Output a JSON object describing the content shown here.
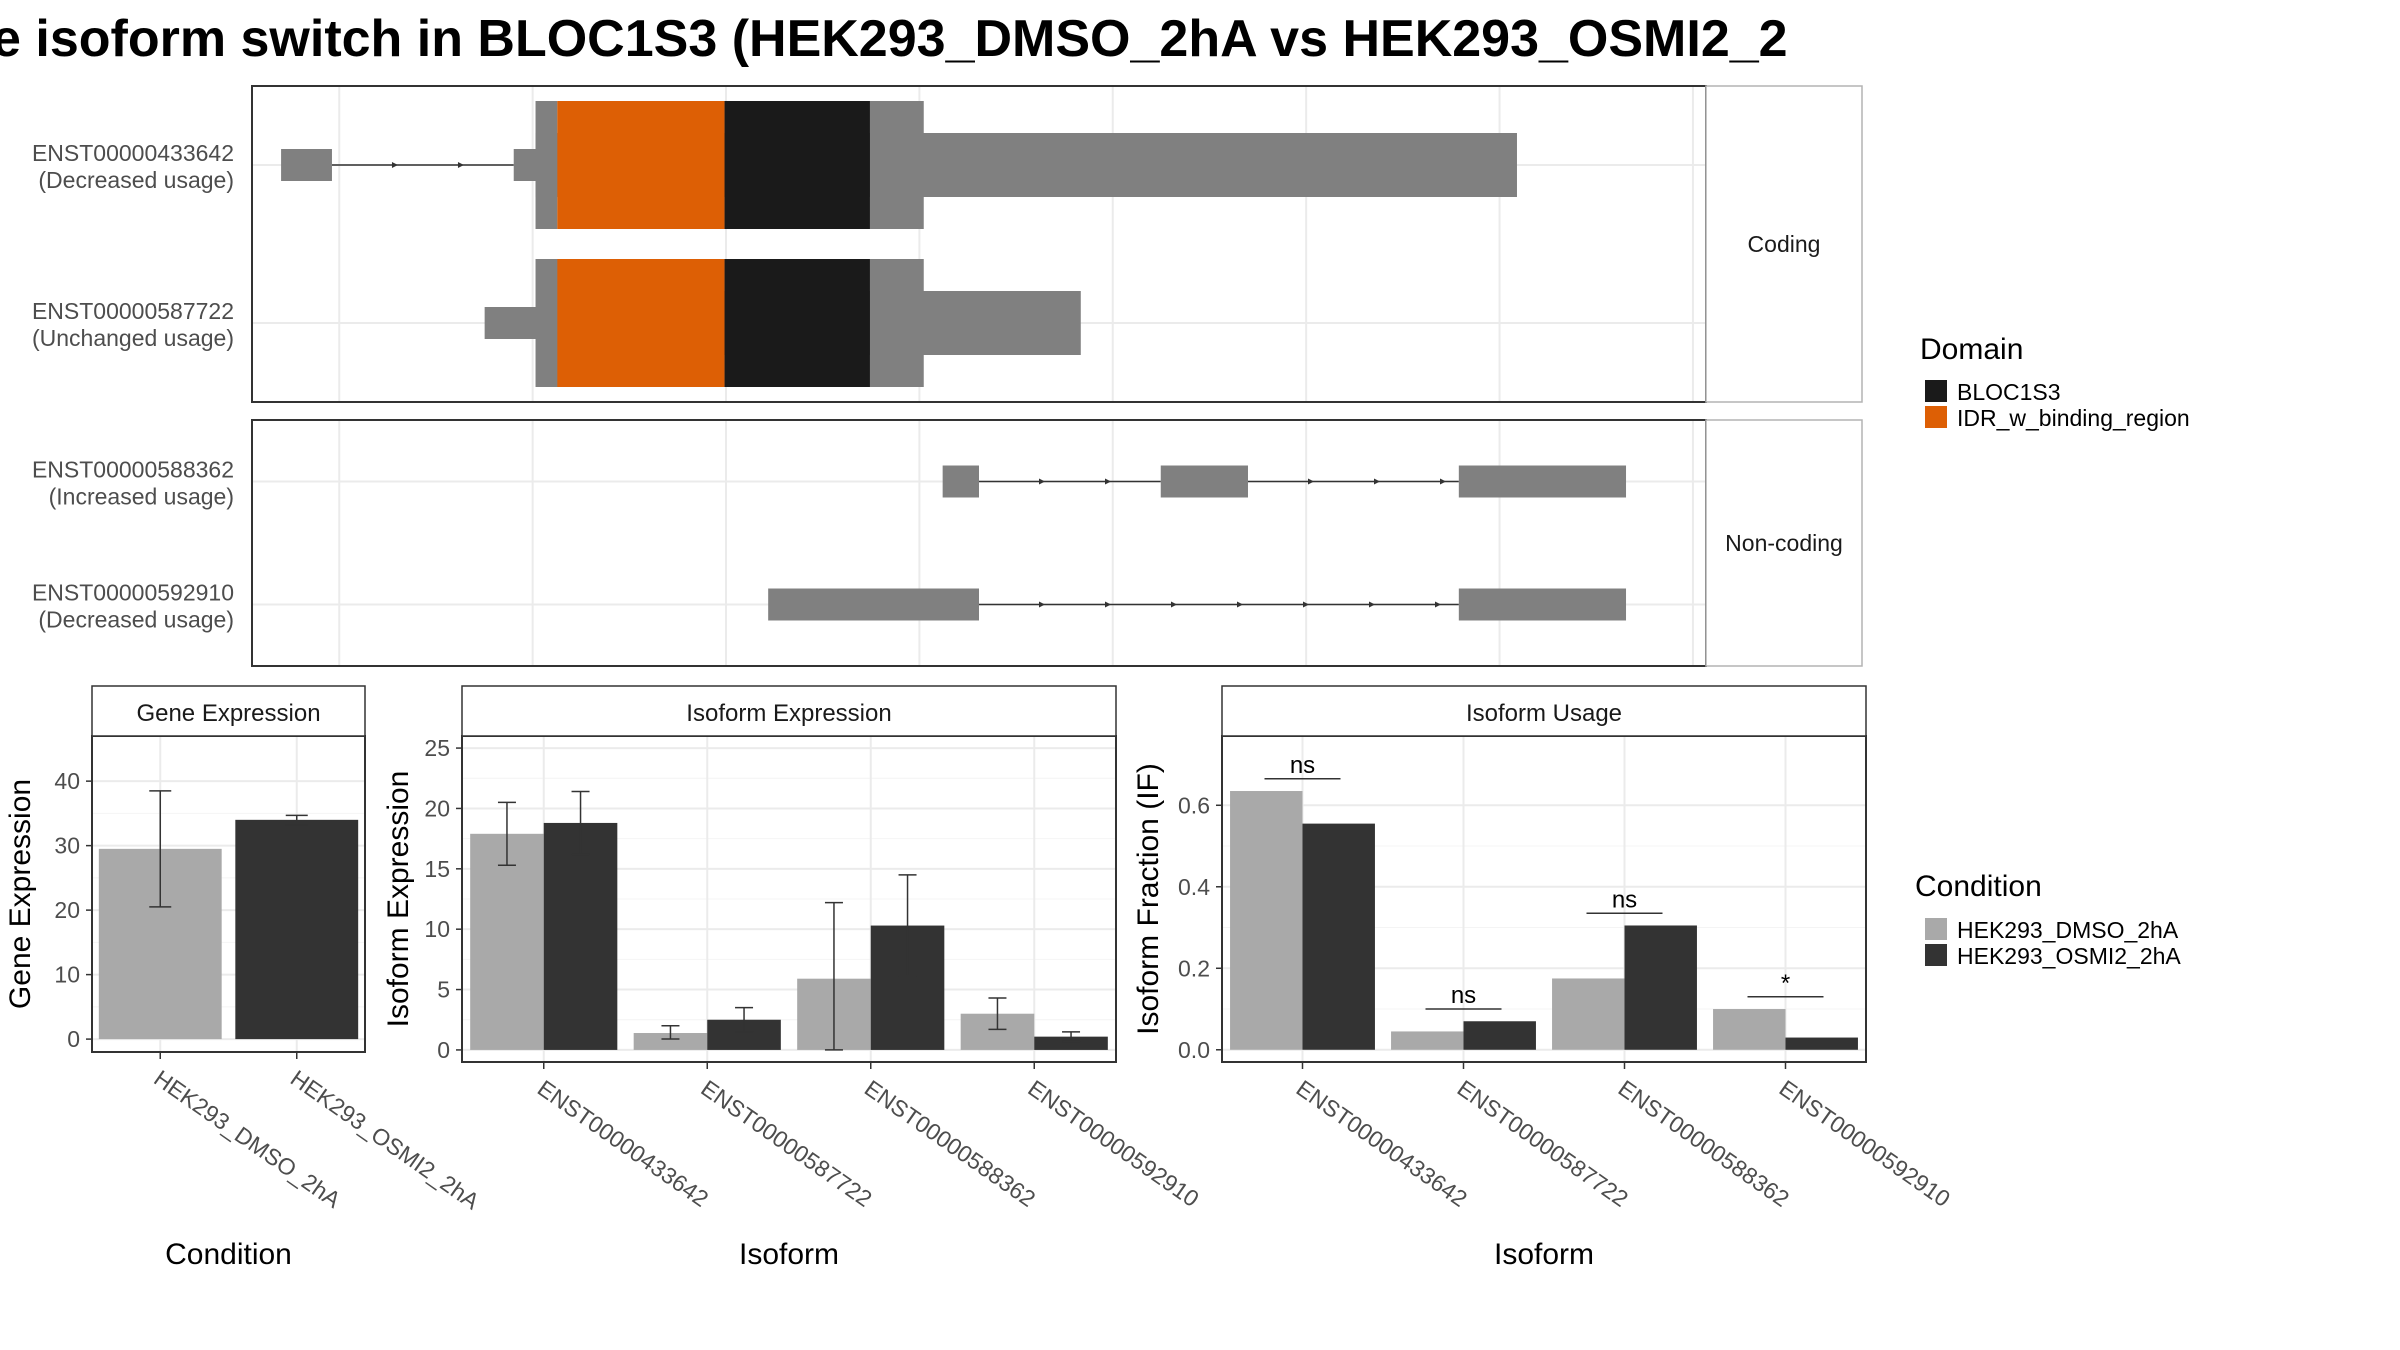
{
  "title": "e isoform switch in BLOC1S3 (HEK293_DMSO_2hA vs HEK293_OSMI2_2",
  "colors": {
    "exon": "#808080",
    "BLOC1S3": "#1a1a1a",
    "IDR_w_binding_region": "#dd5f05",
    "HEK293_DMSO_2hA": "#a9a9a9",
    "HEK293_OSMI2_2hA": "#333333",
    "strip_bg": "#ffffff",
    "grid": "#ebebeb"
  },
  "structure": {
    "x_range": [
      0,
      1000
    ],
    "facets": [
      {
        "label": "Coding",
        "isoforms": [
          {
            "id": "ENST00000433642",
            "usage": "(Decreased usage)",
            "exons": [
              [
                20,
                55
              ],
              [
                180,
                195
              ],
              [
                195,
                870
              ]
            ],
            "utr": [
              [
                180,
                195
              ]
            ],
            "introns": [
              [
                55,
                180
              ]
            ],
            "domains": [
              {
                "name": "IDR_w_binding_region",
                "start": 210,
                "end": 325
              },
              {
                "name": "BLOC1S3",
                "start": 325,
                "end": 425
              }
            ]
          },
          {
            "id": "ENST00000587722",
            "usage": "(Unchanged usage)",
            "exons": [
              [
                160,
                230
              ],
              [
                230,
                570
              ]
            ],
            "introns": [],
            "domains": [
              {
                "name": "IDR_w_binding_region",
                "start": 210,
                "end": 325
              },
              {
                "name": "BLOC1S3",
                "start": 325,
                "end": 425
              }
            ]
          }
        ]
      },
      {
        "label": "Non-coding",
        "isoforms": [
          {
            "id": "ENST00000588362",
            "usage": "(Increased usage)",
            "exons": [
              [
                475,
                500
              ],
              [
                625,
                685
              ],
              [
                830,
                945
              ]
            ],
            "introns": [
              [
                500,
                625
              ],
              [
                685,
                830
              ]
            ],
            "domains": []
          },
          {
            "id": "ENST00000592910",
            "usage": "(Decreased usage)",
            "exons": [
              [
                355,
                500
              ],
              [
                830,
                945
              ]
            ],
            "introns": [
              [
                500,
                830
              ]
            ],
            "domains": []
          }
        ]
      }
    ]
  },
  "domain_legend": {
    "title": "Domain",
    "entries": [
      "BLOC1S3",
      "IDR_w_binding_region"
    ]
  },
  "condition_legend": {
    "title": "Condition",
    "entries": [
      "HEK293_DMSO_2hA",
      "HEK293_OSMI2_2hA"
    ]
  },
  "chart_data": [
    {
      "type": "bar",
      "title": "Gene Expression",
      "xlabel": "Condition",
      "ylabel": "Gene Expression",
      "ylim": [
        -2,
        47
      ],
      "yticks": [
        0,
        10,
        20,
        30,
        40
      ],
      "categories": [
        "HEK293_DMSO_2hA",
        "HEK293_OSMI2_2hA"
      ],
      "values": [
        29.5,
        34
      ],
      "errors": [
        [
          20.5,
          38.5
        ],
        [
          33.2,
          34.7
        ]
      ]
    },
    {
      "type": "bar",
      "title": "Isoform Expression",
      "xlabel": "Isoform",
      "ylabel": "Isoform Expression",
      "ylim": [
        -1,
        26
      ],
      "yticks": [
        0,
        5,
        10,
        15,
        20,
        25
      ],
      "categories": [
        "ENST00000433642",
        "ENST00000587722",
        "ENST00000588362",
        "ENST00000592910"
      ],
      "series": [
        {
          "name": "HEK293_DMSO_2hA",
          "values": [
            17.9,
            1.4,
            5.9,
            3.0
          ],
          "errors": [
            [
              15.3,
              20.5
            ],
            [
              0.9,
              2.0
            ],
            [
              0.0,
              12.2
            ],
            [
              1.7,
              4.3
            ]
          ]
        },
        {
          "name": "HEK293_OSMI2_2hA",
          "values": [
            18.8,
            2.5,
            10.3,
            1.1
          ],
          "errors": [
            [
              16.2,
              21.4
            ],
            [
              1.5,
              3.5
            ],
            [
              6.1,
              14.5
            ],
            [
              0.7,
              1.5
            ]
          ]
        }
      ]
    },
    {
      "type": "bar",
      "title": "Isoform Usage",
      "xlabel": "Isoform",
      "ylabel": "Isoform Fraction (IF)",
      "ylim": [
        -0.03,
        0.77
      ],
      "yticks": [
        0.0,
        0.2,
        0.4,
        0.6
      ],
      "categories": [
        "ENST00000433642",
        "ENST00000587722",
        "ENST00000588362",
        "ENST00000592910"
      ],
      "series": [
        {
          "name": "HEK293_DMSO_2hA",
          "values": [
            0.635,
            0.045,
            0.175,
            0.1
          ]
        },
        {
          "name": "HEK293_OSMI2_2hA",
          "values": [
            0.555,
            0.07,
            0.305,
            0.03
          ]
        }
      ],
      "significance": [
        {
          "category": 0,
          "label": "ns",
          "y": 0.665
        },
        {
          "category": 1,
          "label": "ns",
          "y": 0.1
        },
        {
          "category": 2,
          "label": "ns",
          "y": 0.335
        },
        {
          "category": 3,
          "label": "*",
          "y": 0.13
        }
      ]
    }
  ]
}
